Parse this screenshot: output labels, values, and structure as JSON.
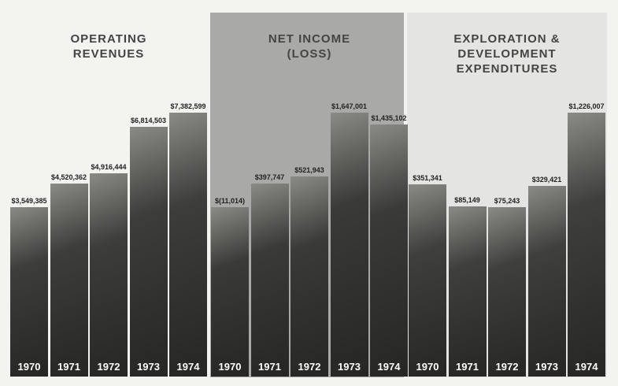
{
  "chart_data": [
    {
      "type": "bar",
      "title": "OPERATING REVENUES",
      "color": "#3d3d3b",
      "categories": [
        "1970",
        "1971",
        "1972",
        "1973",
        "1974"
      ],
      "values": [
        3549385,
        4520362,
        4916444,
        6814503,
        7382599
      ],
      "value_labels": [
        "$3,549,385",
        "$4,520,362",
        "$4,916,444",
        "$6,814,503",
        "$7,382,599"
      ]
    },
    {
      "type": "bar",
      "title": "NET INCOME (LOSS)",
      "color": "#3a3a38",
      "categories": [
        "1970",
        "1971",
        "1972",
        "1973",
        "1974"
      ],
      "values": [
        -11014,
        397747,
        521943,
        1647001,
        1435102
      ],
      "value_labels": [
        "$(11,014)",
        "$397,747",
        "$521,943",
        "$1,647,001",
        "$1,435,102"
      ]
    },
    {
      "type": "bar",
      "title": "EXPLORATION & DEVELOPMENT EXPENDITURES",
      "color": "#3f3f3d",
      "categories": [
        "1970",
        "1971",
        "1972",
        "1973",
        "1974"
      ],
      "values": [
        351341,
        85149,
        75243,
        329421,
        1226007
      ],
      "value_labels": [
        "$351,341",
        "$85,149",
        "$75,243",
        "$329,421",
        "$1,226,007"
      ]
    }
  ]
}
